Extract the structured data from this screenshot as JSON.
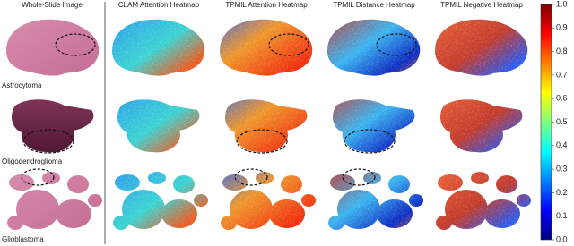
{
  "header": {
    "columns": [
      "Whole-Slide Image",
      "CLAM Attention Heatmap",
      "TPMIL Attention Heatmap",
      "TPMIL Distance Heatmap",
      "TPMIL Negative Heatmap"
    ]
  },
  "rows": [
    {
      "label": "Astrocytoma"
    },
    {
      "label": "Oligodendroglioma"
    },
    {
      "label": "Glioblastoma"
    }
  ],
  "colorbar": {
    "ylim": [
      0,
      1
    ],
    "yticks": [
      {
        "value": 0,
        "label": "0.0"
      },
      0.1,
      0.2,
      0.3,
      0.4,
      0.5,
      0.6,
      0.7,
      0.8,
      0.9,
      {
        "value": 1,
        "label": "1.0"
      }
    ]
  }
}
